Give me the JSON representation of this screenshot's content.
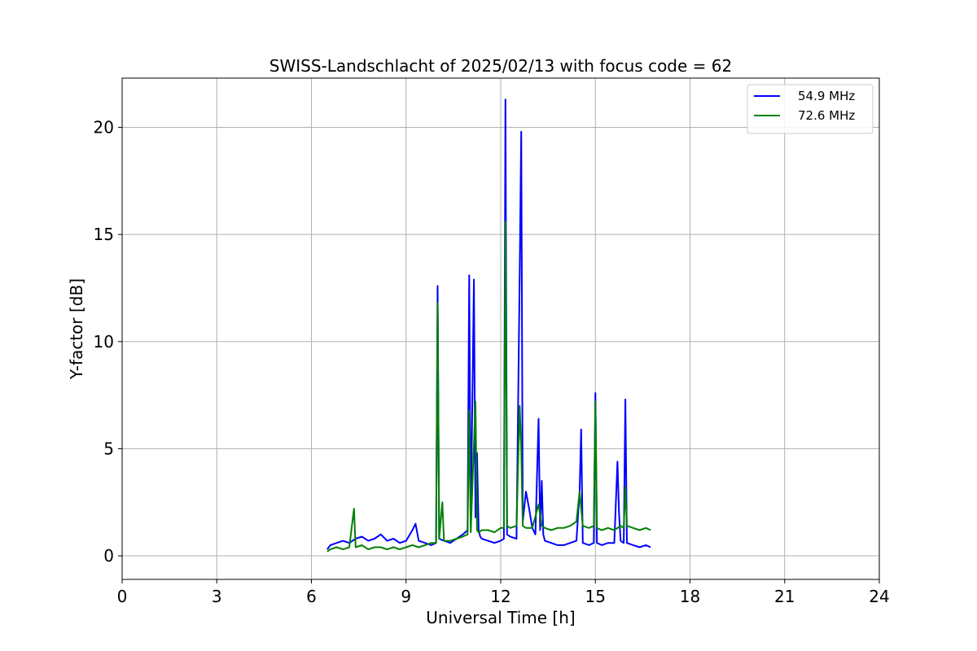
{
  "chart_data": {
    "type": "line",
    "title": "SWISS-Landschlacht of 2025/02/13 with focus code = 62",
    "xlabel": "Universal Time [h]",
    "ylabel": "Y-factor [dB]",
    "xlim": [
      0,
      24
    ],
    "ylim": [
      -1.1,
      22.3
    ],
    "xticks": [
      0,
      3,
      6,
      9,
      12,
      15,
      18,
      21,
      24
    ],
    "yticks": [
      0,
      5,
      10,
      15,
      20
    ],
    "grid": true,
    "legend_position": "top-right",
    "series": [
      {
        "name": "54.9 MHz",
        "color": "#0000ff",
        "x": [
          6.5,
          6.6,
          6.8,
          7.0,
          7.2,
          7.4,
          7.6,
          7.8,
          8.0,
          8.2,
          8.4,
          8.6,
          8.8,
          9.0,
          9.2,
          9.3,
          9.4,
          9.6,
          9.8,
          9.95,
          10.0,
          10.05,
          10.2,
          10.4,
          10.6,
          10.8,
          10.95,
          11.0,
          11.05,
          11.15,
          11.2,
          11.25,
          11.3,
          11.35,
          11.4,
          11.6,
          11.8,
          12.0,
          12.1,
          12.15,
          12.2,
          12.3,
          12.5,
          12.6,
          12.65,
          12.7,
          12.8,
          12.9,
          13.0,
          13.1,
          13.2,
          13.25,
          13.3,
          13.35,
          13.4,
          13.6,
          13.8,
          14.0,
          14.2,
          14.4,
          14.5,
          14.55,
          14.6,
          14.8,
          14.95,
          15.0,
          15.05,
          15.2,
          15.4,
          15.6,
          15.7,
          15.75,
          15.8,
          15.9,
          15.95,
          16.0,
          16.2,
          16.4,
          16.6,
          16.75
        ],
        "y": [
          0.3,
          0.5,
          0.6,
          0.7,
          0.6,
          0.8,
          0.9,
          0.7,
          0.8,
          1.0,
          0.7,
          0.8,
          0.6,
          0.7,
          1.2,
          1.5,
          0.7,
          0.6,
          0.5,
          0.6,
          12.6,
          0.8,
          0.7,
          0.6,
          0.8,
          1.0,
          1.2,
          13.1,
          1.5,
          12.9,
          1.8,
          4.8,
          1.2,
          0.9,
          0.8,
          0.7,
          0.6,
          0.7,
          0.8,
          21.3,
          1.0,
          0.9,
          0.8,
          13.1,
          19.8,
          1.6,
          3.0,
          2.2,
          1.3,
          1.0,
          6.4,
          1.2,
          3.5,
          1.0,
          0.7,
          0.6,
          0.5,
          0.5,
          0.6,
          0.7,
          3.0,
          5.9,
          0.6,
          0.5,
          0.6,
          7.6,
          0.6,
          0.5,
          0.6,
          0.6,
          4.4,
          2.0,
          0.7,
          0.6,
          7.3,
          0.6,
          0.5,
          0.4,
          0.5,
          0.4
        ]
      },
      {
        "name": "72.6 MHz",
        "color": "#008000",
        "x": [
          6.5,
          6.6,
          6.8,
          7.0,
          7.2,
          7.35,
          7.4,
          7.6,
          7.8,
          8.0,
          8.2,
          8.4,
          8.6,
          8.8,
          9.0,
          9.2,
          9.4,
          9.6,
          9.8,
          9.95,
          10.0,
          10.05,
          10.15,
          10.2,
          10.4,
          10.6,
          10.8,
          10.95,
          11.0,
          11.05,
          11.2,
          11.25,
          11.3,
          11.4,
          11.6,
          11.8,
          12.0,
          12.1,
          12.15,
          12.2,
          12.3,
          12.5,
          12.6,
          12.65,
          12.7,
          12.8,
          13.0,
          13.2,
          13.3,
          13.4,
          13.6,
          13.8,
          14.0,
          14.2,
          14.4,
          14.5,
          14.6,
          14.8,
          14.95,
          15.0,
          15.05,
          15.2,
          15.4,
          15.6,
          15.8,
          15.9,
          15.95,
          16.0,
          16.2,
          16.4,
          16.6,
          16.75
        ],
        "y": [
          0.2,
          0.3,
          0.4,
          0.3,
          0.4,
          2.2,
          0.4,
          0.5,
          0.3,
          0.4,
          0.4,
          0.3,
          0.4,
          0.3,
          0.4,
          0.5,
          0.4,
          0.5,
          0.6,
          0.6,
          11.8,
          0.8,
          2.5,
          0.7,
          0.7,
          0.8,
          0.9,
          1.0,
          6.8,
          1.1,
          7.2,
          1.2,
          1.1,
          1.2,
          1.2,
          1.1,
          1.3,
          1.3,
          15.6,
          1.4,
          1.3,
          1.4,
          7.0,
          5.0,
          1.4,
          1.3,
          1.3,
          2.4,
          1.4,
          1.3,
          1.2,
          1.3,
          1.3,
          1.4,
          1.6,
          3.0,
          1.4,
          1.3,
          1.4,
          7.2,
          1.3,
          1.2,
          1.3,
          1.2,
          1.4,
          1.3,
          3.2,
          1.4,
          1.3,
          1.2,
          1.3,
          1.2
        ]
      }
    ]
  }
}
